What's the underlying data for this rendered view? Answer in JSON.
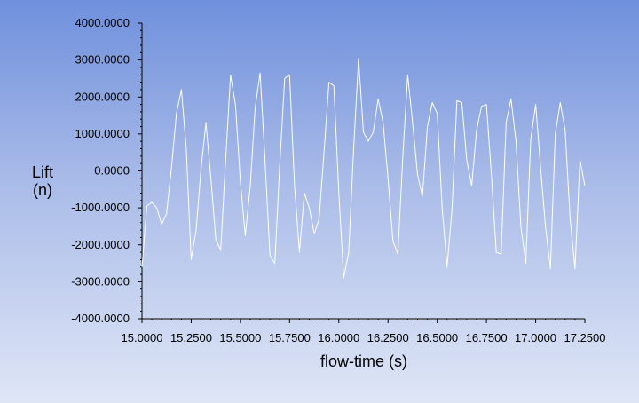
{
  "chart_data": {
    "type": "line",
    "xlabel": "flow-time (s)",
    "ylabel": [
      "Lift",
      "(n)"
    ],
    "xlim": [
      15.0,
      17.25
    ],
    "ylim": [
      -4000,
      4000
    ],
    "x_ticks": [
      15.0,
      15.25,
      15.5,
      15.75,
      16.0,
      16.25,
      16.5,
      16.75,
      17.0,
      17.25
    ],
    "x_tick_labels": [
      "15.0000",
      "15.2500",
      "15.5000",
      "15.7500",
      "16.0000",
      "16.2500",
      "16.5000",
      "16.7500",
      "17.0000",
      "17.2500"
    ],
    "y_ticks": [
      4000,
      3000,
      2000,
      1000,
      0,
      -1000,
      -2000,
      -3000,
      -4000
    ],
    "y_tick_labels": [
      "4000.0000",
      "3000.0000",
      "2000.0000",
      "1000.0000",
      "0.0000",
      "-1000.0000",
      "-2000.0000",
      "-3000.0000",
      "-4000.0000"
    ],
    "grid": false,
    "line_color": "#ffffff",
    "series": [
      {
        "x": [
          15.0,
          15.025,
          15.05,
          15.075,
          15.1,
          15.125,
          15.15,
          15.175,
          15.2,
          15.225,
          15.25,
          15.275,
          15.3,
          15.325,
          15.35,
          15.375,
          15.4,
          15.425,
          15.45,
          15.475,
          15.5,
          15.525,
          15.55,
          15.575,
          15.6,
          15.625,
          15.65,
          15.675,
          15.7,
          15.725,
          15.75,
          15.775,
          15.8,
          15.825,
          15.85,
          15.875,
          15.9,
          15.925,
          15.95,
          15.975,
          16.0,
          16.025,
          16.05,
          16.075,
          16.1,
          16.125,
          16.15,
          16.175,
          16.2,
          16.225,
          16.25,
          16.275,
          16.3,
          16.325,
          16.35,
          16.375,
          16.4,
          16.425,
          16.45,
          16.475,
          16.5,
          16.525,
          16.55,
          16.575,
          16.6,
          16.625,
          16.65,
          16.675,
          16.7,
          16.725,
          16.75,
          16.775,
          16.8,
          16.825,
          16.85,
          16.875,
          16.9,
          16.925,
          16.95,
          16.975,
          17.0,
          17.025,
          17.05,
          17.075,
          17.1,
          17.125,
          17.15,
          17.175,
          17.2,
          17.225,
          17.25
        ],
        "y": [
          -2600,
          -950,
          -850,
          -1000,
          -1450,
          -1150,
          100,
          1550,
          2200,
          600,
          -2400,
          -1600,
          50,
          1300,
          -200,
          -1850,
          -2150,
          300,
          2600,
          1800,
          -300,
          -1750,
          -400,
          1700,
          2650,
          300,
          -2300,
          -2500,
          150,
          2500,
          2600,
          -400,
          -2200,
          -600,
          -1000,
          -1700,
          -1300,
          500,
          2400,
          2300,
          -600,
          -2900,
          -2200,
          550,
          3050,
          1050,
          800,
          1050,
          1950,
          1300,
          -200,
          -1900,
          -2250,
          400,
          2600,
          1300,
          -100,
          -700,
          1200,
          1850,
          1550,
          -1000,
          -2600,
          -1050,
          1900,
          1850,
          300,
          -400,
          1100,
          1750,
          1800,
          -100,
          -2200,
          -2250,
          1300,
          1950,
          800,
          -1500,
          -2500,
          850,
          1800,
          100,
          -1500,
          -2650,
          1000,
          1850,
          1100,
          -1300,
          -2650,
          300,
          -400
        ]
      }
    ]
  }
}
